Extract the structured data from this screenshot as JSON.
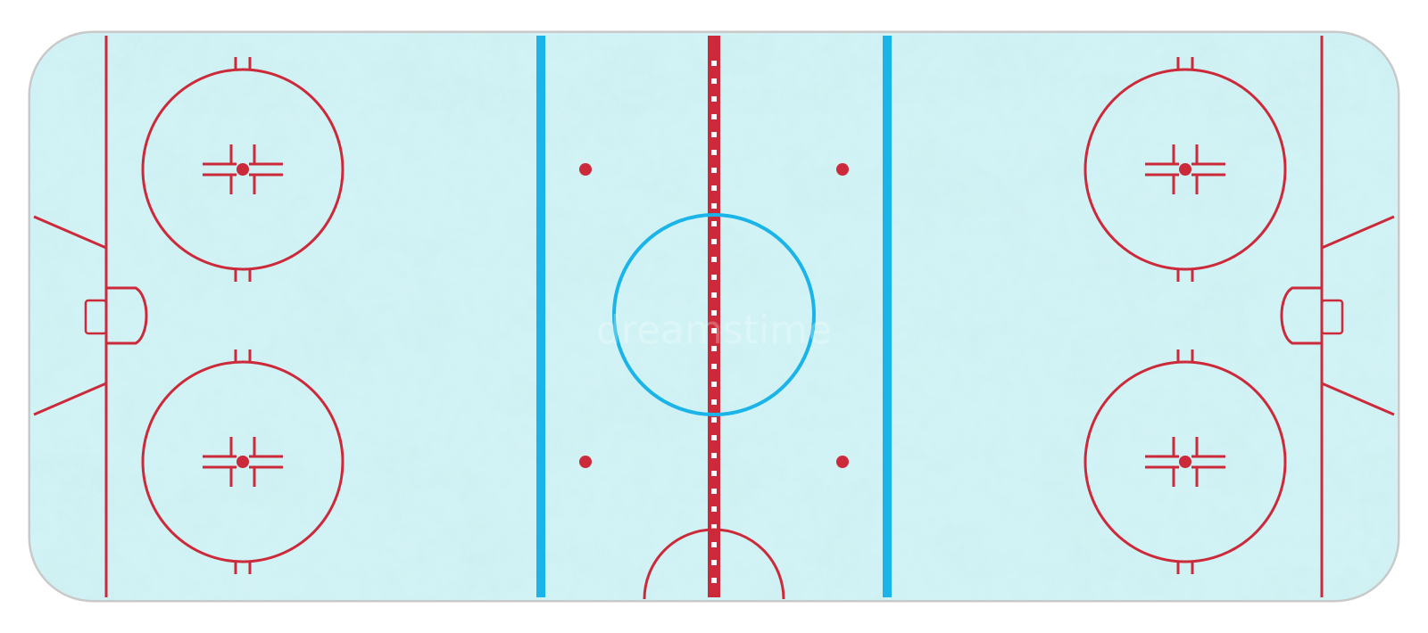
{
  "rink": {
    "type": "ice-hockey-rink",
    "view": "top-down",
    "colors": {
      "background": "#ffffff",
      "boards": "#c9c9c9",
      "ice_light": "#e9f9fa",
      "ice_mid": "#c8f0f2",
      "ice_dark": "#a6e2e6",
      "red_line": "#cc2a3a",
      "blue_line": "#1ab4e8",
      "center_circle": "#1ab4e8",
      "center_line_dash": "#ffffff"
    },
    "watermark": "dreamstime"
  }
}
